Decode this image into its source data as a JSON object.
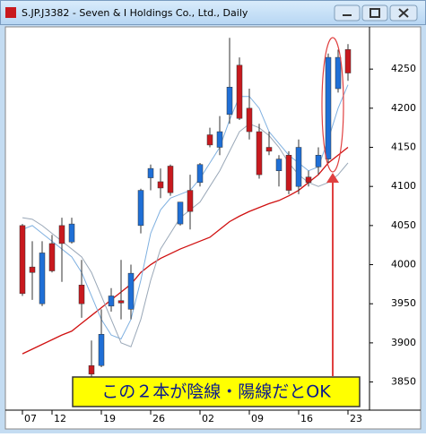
{
  "window_title": "S.JP.J3382 - Seven & I Holdings Co., Ltd., Daily",
  "chart_data": {
    "type": "candlestick",
    "categories": [
      "07",
      null,
      null,
      "12",
      null,
      null,
      null,
      null,
      "19",
      null,
      null,
      null,
      null,
      "26",
      null,
      null,
      null,
      null,
      "02",
      null,
      null,
      null,
      null,
      "09",
      null,
      null,
      null,
      null,
      "16",
      null,
      null,
      null,
      null,
      "23"
    ],
    "open": [
      4050,
      3997,
      3950,
      4027,
      4050,
      4029,
      3974,
      3871,
      3871,
      3947,
      3954,
      3943,
      4050,
      4111,
      4106,
      4126,
      4052,
      4095,
      4105,
      4166,
      4150,
      4192,
      4255,
      4200,
      4170,
      4150,
      4120,
      4140,
      4100,
      4112,
      4125,
      4135,
      4225,
      4275
    ],
    "high": [
      4052,
      4030,
      4030,
      4038,
      4060,
      4060,
      4006,
      3903,
      3943,
      3970,
      4006,
      4000,
      4097,
      4128,
      4123,
      4128,
      4080,
      4115,
      4130,
      4175,
      4190,
      4290,
      4265,
      4225,
      4180,
      4170,
      4140,
      4145,
      4160,
      4120,
      4150,
      4270,
      4275,
      4282
    ],
    "low": [
      3960,
      3955,
      3947,
      3990,
      3978,
      4027,
      3932,
      3857,
      3869,
      3940,
      3930,
      3930,
      4040,
      4095,
      4085,
      4088,
      4050,
      4045,
      4100,
      4150,
      4140,
      4180,
      4185,
      4160,
      4110,
      4140,
      4100,
      4090,
      4090,
      4100,
      4115,
      4130,
      4220,
      4235
    ],
    "close": [
      3963,
      3990,
      4015,
      3992,
      4027,
      4052,
      3950,
      3860,
      3911,
      3960,
      3951,
      3989,
      4095,
      4123,
      4098,
      4092,
      4080,
      4068,
      4128,
      4153,
      4170,
      4227,
      4187,
      4170,
      4115,
      4145,
      4135,
      4095,
      4150,
      4105,
      4140,
      4265,
      4265,
      4245
    ],
    "up_color": "#1f6fd6",
    "down_color": "#c8191e",
    "lines": [
      {
        "color": "#d01010",
        "values": [
          3886,
          3892,
          3898,
          3904,
          3910,
          3915,
          3925,
          3935,
          3945,
          3955,
          3965,
          3975,
          3990,
          4000,
          4008,
          4014,
          4020,
          4025,
          4030,
          4035,
          4045,
          4055,
          4062,
          4068,
          4073,
          4078,
          4082,
          4088,
          4095,
          4105,
          4115,
          4130,
          4140,
          4150
        ]
      },
      {
        "color": "#7fb0e0",
        "values": [
          4045,
          4050,
          4040,
          4030,
          4020,
          4010,
          3990,
          3960,
          3930,
          3910,
          3905,
          3930,
          3980,
          4040,
          4070,
          4085,
          4090,
          4095,
          4110,
          4130,
          4150,
          4185,
          4215,
          4215,
          4200,
          4170,
          4155,
          4140,
          4130,
          4120,
          4125,
          4160,
          4200,
          4230
        ]
      },
      {
        "color": "#9aa8b8",
        "values": [
          4060,
          4058,
          4050,
          4040,
          4030,
          4020,
          4010,
          3990,
          3960,
          3930,
          3900,
          3895,
          3930,
          3980,
          4020,
          4040,
          4060,
          4070,
          4080,
          4100,
          4120,
          4145,
          4170,
          4180,
          4175,
          4165,
          4150,
          4130,
          4115,
          4105,
          4100,
          4105,
          4115,
          4130
        ]
      }
    ],
    "ylim": [
      3814,
      4304
    ],
    "yticks": [
      3850,
      3900,
      3950,
      4000,
      4050,
      4100,
      4150,
      4200,
      4250
    ],
    "annotation": "この２本が陰線・陽線だとOK"
  }
}
